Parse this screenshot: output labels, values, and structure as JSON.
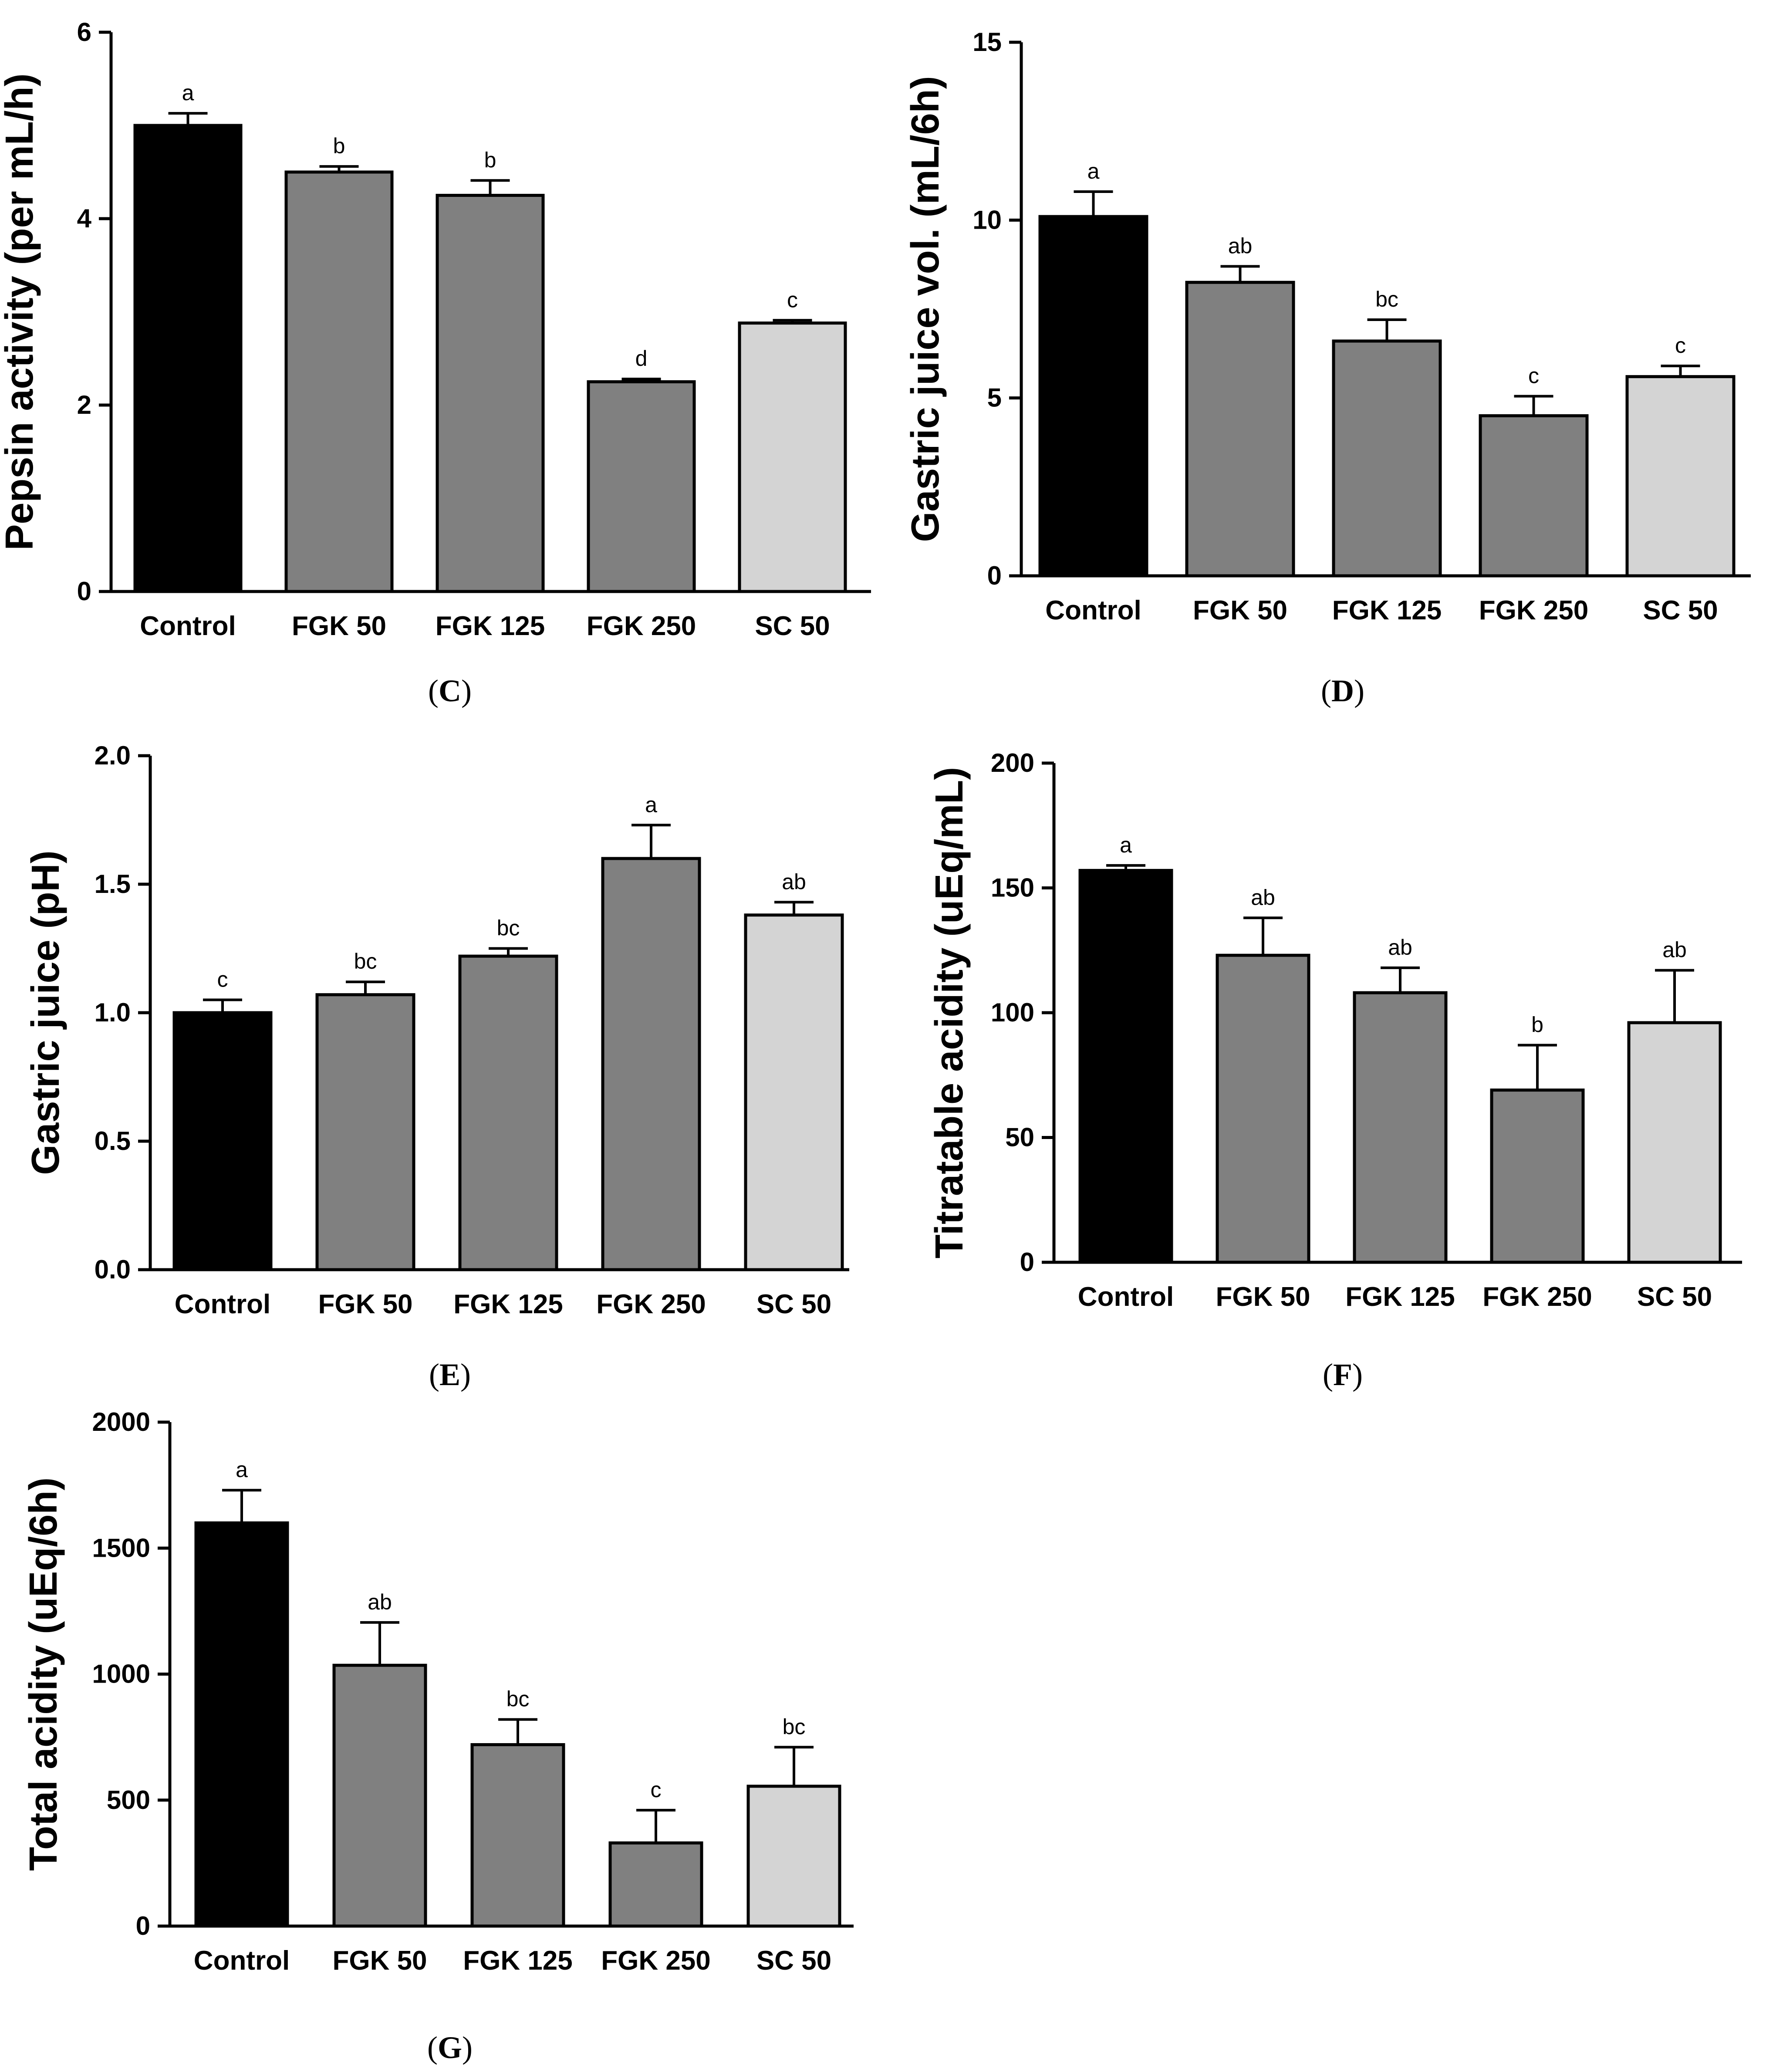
{
  "chart_data": [
    {
      "id": "C",
      "type": "bar",
      "panel_label": "C",
      "ylabel": "Pepsin activity (per mL/h)",
      "xlabel": "",
      "categories": [
        "Control",
        "FGK 50",
        "FGK 125",
        "FGK 250",
        "SC 50"
      ],
      "values": [
        5.0,
        4.5,
        4.25,
        2.25,
        2.88
      ],
      "errors": [
        0.13,
        0.06,
        0.16,
        0.03,
        0.03
      ],
      "significance": [
        "a",
        "b",
        "b",
        "d",
        "c"
      ],
      "bar_colors": [
        "#000000",
        "#808080",
        "#808080",
        "#808080",
        "#d4d4d4"
      ],
      "ylim": [
        0,
        6
      ],
      "yticks": [
        0,
        2,
        4,
        6
      ],
      "ytick_labels": [
        "0",
        "2",
        "4",
        "6"
      ]
    },
    {
      "id": "D",
      "type": "bar",
      "panel_label": "D",
      "ylabel": "Gastric juice vol. (mL/6h)",
      "xlabel": "",
      "categories": [
        "Control",
        "FGK 50",
        "FGK 125",
        "FGK 250",
        "SC 50"
      ],
      "values": [
        10.1,
        8.25,
        6.6,
        4.5,
        5.6
      ],
      "errors": [
        0.7,
        0.45,
        0.6,
        0.55,
        0.3
      ],
      "significance": [
        "a",
        "ab",
        "bc",
        "c",
        "c"
      ],
      "bar_colors": [
        "#000000",
        "#808080",
        "#808080",
        "#808080",
        "#d4d4d4"
      ],
      "ylim": [
        0,
        15
      ],
      "yticks": [
        0,
        5,
        10,
        15
      ],
      "ytick_labels": [
        "0",
        "5",
        "10",
        "15"
      ]
    },
    {
      "id": "E",
      "type": "bar",
      "panel_label": "E",
      "ylabel": "Gastric juice (pH)",
      "xlabel": "",
      "categories": [
        "Control",
        "FGK 50",
        "FGK 125",
        "FGK 250",
        "SC 50"
      ],
      "values": [
        1.0,
        1.07,
        1.22,
        1.6,
        1.38
      ],
      "errors": [
        0.05,
        0.05,
        0.03,
        0.13,
        0.05
      ],
      "significance": [
        "c",
        "bc",
        "bc",
        "a",
        "ab"
      ],
      "bar_colors": [
        "#000000",
        "#808080",
        "#808080",
        "#808080",
        "#d4d4d4"
      ],
      "ylim": [
        0,
        2.0
      ],
      "yticks": [
        0,
        0.5,
        1.0,
        1.5,
        2.0
      ],
      "ytick_labels": [
        "0.0",
        "0.5",
        "1.0",
        "1.5",
        "2.0"
      ]
    },
    {
      "id": "F",
      "type": "bar",
      "panel_label": "F",
      "ylabel": "Titratable acidity (uEq/mL)",
      "xlabel": "",
      "categories": [
        "Control",
        "FGK 50",
        "FGK 125",
        "FGK 250",
        "SC 50"
      ],
      "values": [
        157,
        123,
        108,
        69,
        96
      ],
      "errors": [
        2,
        15,
        10,
        18,
        21
      ],
      "significance": [
        "a",
        "ab",
        "ab",
        "b",
        "ab"
      ],
      "bar_colors": [
        "#000000",
        "#808080",
        "#808080",
        "#808080",
        "#d4d4d4"
      ],
      "ylim": [
        0,
        200
      ],
      "yticks": [
        0,
        50,
        100,
        150,
        200
      ],
      "ytick_labels": [
        "0",
        "50",
        "100",
        "150",
        "200"
      ]
    },
    {
      "id": "G",
      "type": "bar",
      "panel_label": "G",
      "ylabel": "Total acidity (uEq/6h)",
      "xlabel": "",
      "categories": [
        "Control",
        "FGK 50",
        "FGK 125",
        "FGK 250",
        "SC 50"
      ],
      "values": [
        1600,
        1035,
        720,
        330,
        555
      ],
      "errors": [
        130,
        170,
        100,
        130,
        155
      ],
      "significance": [
        "a",
        "ab",
        "bc",
        "c",
        "bc"
      ],
      "bar_colors": [
        "#000000",
        "#808080",
        "#808080",
        "#808080",
        "#d4d4d4"
      ],
      "ylim": [
        0,
        2000
      ],
      "yticks": [
        0,
        500,
        1000,
        1500,
        2000
      ],
      "ytick_labels": [
        "0",
        "500",
        "1000",
        "1500",
        "2000"
      ]
    }
  ]
}
